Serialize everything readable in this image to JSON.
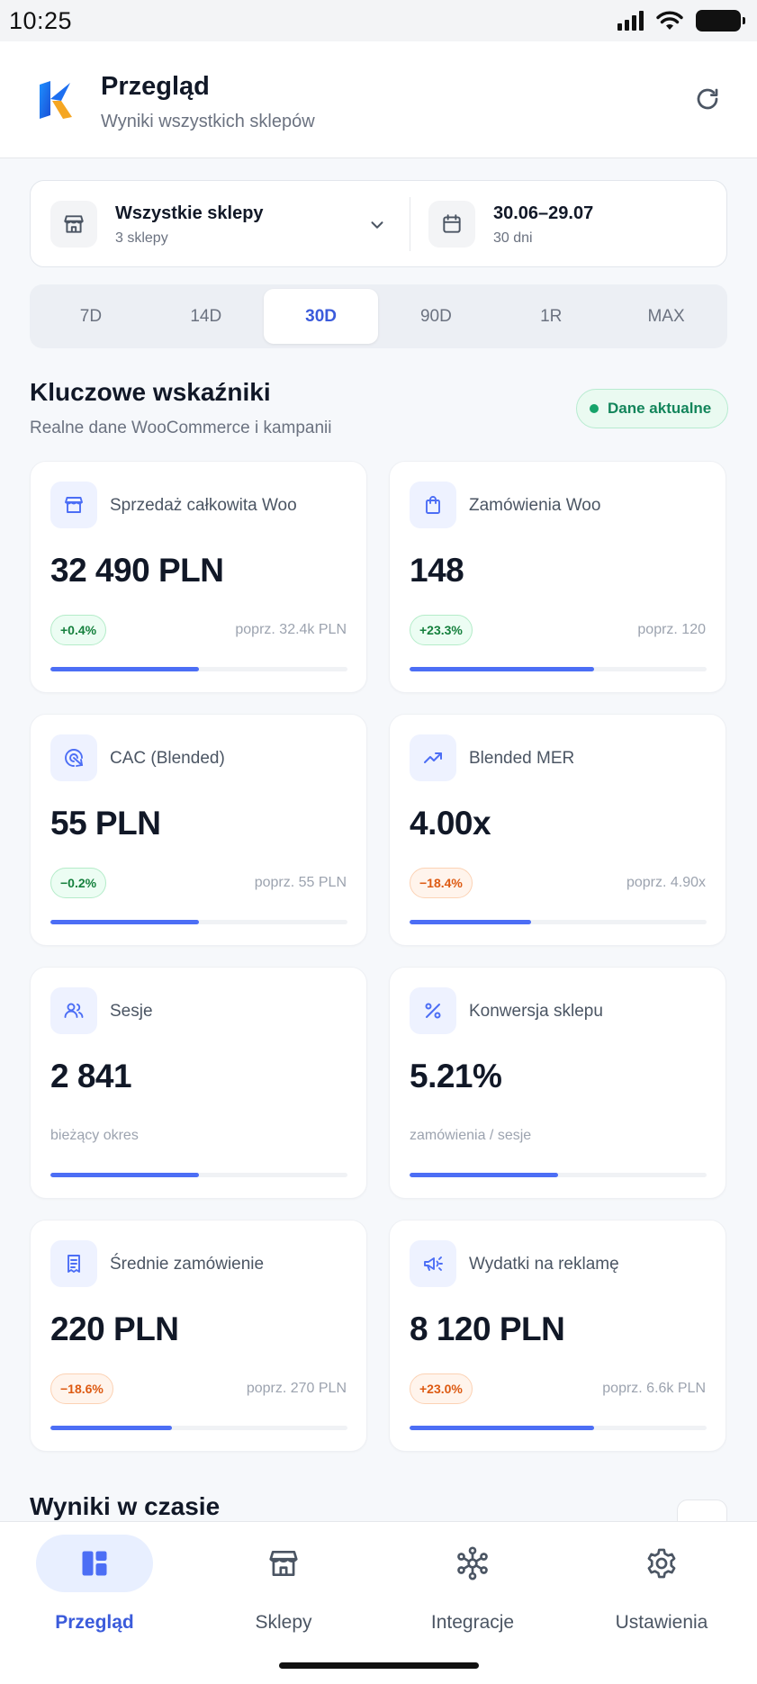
{
  "status_bar": {
    "time": "10:25"
  },
  "header": {
    "title": "Przegląd",
    "subtitle": "Wyniki wszystkich sklepów",
    "refresh_icon": "refresh-icon"
  },
  "filters": {
    "store": {
      "label": "Wszystkie sklepy",
      "sub": "3 sklepy"
    },
    "date": {
      "label": "30.06–29.07",
      "sub": "30 dni"
    }
  },
  "period_tabs": [
    {
      "label": "7D",
      "active": false
    },
    {
      "label": "14D",
      "active": false
    },
    {
      "label": "30D",
      "active": true
    },
    {
      "label": "90D",
      "active": false
    },
    {
      "label": "1R",
      "active": false
    },
    {
      "label": "MAX",
      "active": false
    }
  ],
  "kpi_section": {
    "title": "Kluczowe wskaźniki",
    "subtitle": "Realne dane WooCommerce i kampanii",
    "status": "Dane aktualne"
  },
  "kpis": [
    {
      "icon": "store-icon",
      "label": "Sprzedaż całkowita Woo",
      "value": "32 490 PLN",
      "change": "+0.4%",
      "trend": "pos",
      "prev": "poprz. 32.4k PLN",
      "progress": 0.5
    },
    {
      "icon": "shopping-bag-icon",
      "label": "Zamówienia Woo",
      "value": "148",
      "change": "+23.3%",
      "trend": "pos",
      "prev": "poprz. 120",
      "progress": 0.62
    },
    {
      "icon": "target-icon",
      "label": "CAC (Blended)",
      "value": "55 PLN",
      "change": "−0.2%",
      "trend": "pos",
      "prev": "poprz. 55 PLN",
      "progress": 0.5
    },
    {
      "icon": "trending-up-icon",
      "label": "Blended MER",
      "value": "4.00x",
      "change": "−18.4%",
      "trend": "neg",
      "prev": "poprz. 4.90x",
      "progress": 0.41
    },
    {
      "icon": "users-icon",
      "label": "Sesje",
      "value": "2 841",
      "note": "bieżący okres",
      "progress": 0.5
    },
    {
      "icon": "percent-icon",
      "label": "Konwersja sklepu",
      "value": "5.21%",
      "note": "zamówienia / sesje",
      "progress": 0.5
    },
    {
      "icon": "receipt-icon",
      "label": "Średnie zamówienie",
      "value": "220 PLN",
      "change": "−18.6%",
      "trend": "neg",
      "prev": "poprz. 270 PLN",
      "progress": 0.41
    },
    {
      "icon": "megaphone-icon",
      "label": "Wydatki na reklamę",
      "value": "8 120 PLN",
      "change": "+23.0%",
      "trend": "neg",
      "prev": "poprz. 6.6k PLN",
      "progress": 0.62
    }
  ],
  "results_section": {
    "title": "Wyniki w czasie"
  },
  "bottom_nav": [
    {
      "label": "Przegląd",
      "icon": "dashboard-icon",
      "active": true
    },
    {
      "label": "Sklepy",
      "icon": "store-icon",
      "active": false
    },
    {
      "label": "Integracje",
      "icon": "integrations-icon",
      "active": false
    },
    {
      "label": "Ustawienia",
      "icon": "settings-icon",
      "active": false
    }
  ],
  "colors": {
    "accent": "#3b5bdb",
    "bar_fill": "#4c6ef5",
    "positive": "#15803d",
    "negative": "#dd5a12",
    "live": "#13855b"
  }
}
